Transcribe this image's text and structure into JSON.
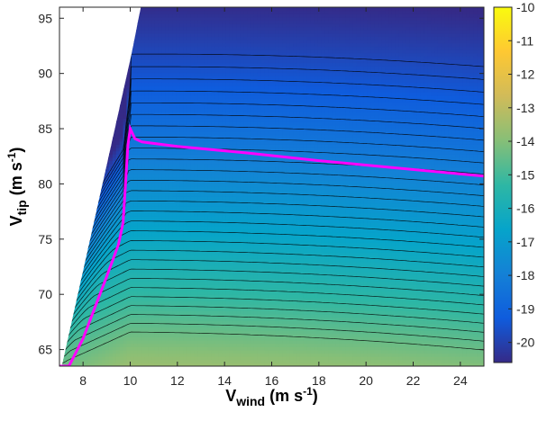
{
  "chart_data": {
    "type": "contour",
    "xlabel": {
      "main": "V",
      "sub": "wind",
      "rest": " (m s",
      "sup": "-1",
      "close": ")"
    },
    "ylabel": {
      "main": "V",
      "sub": "tip",
      "rest": " (m s",
      "sup": "-1",
      "close": ")"
    },
    "xlim": [
      7,
      25
    ],
    "ylim": [
      63.5,
      96
    ],
    "xticks": [
      8,
      10,
      12,
      14,
      16,
      18,
      20,
      22,
      24
    ],
    "yticks": [
      65,
      70,
      75,
      80,
      85,
      90,
      95
    ],
    "colorbar": {
      "lim": [
        -20.6,
        -10
      ],
      "ticks": [
        -20,
        -19,
        -18,
        -17,
        -16,
        -15,
        -14,
        -13,
        -12,
        -11,
        -10
      ],
      "colormap": "parula"
    },
    "contour_levels": [
      -19.8,
      -19.6,
      -19.4,
      -19.2,
      -19.0,
      -18.8,
      -18.6,
      -18.4,
      -18.2,
      -18.0,
      -17.8,
      -17.6,
      -17.4,
      -17.2,
      -17.0,
      -16.8,
      -16.6,
      -16.4,
      -16.2,
      -16.0,
      -15.8,
      -15.6,
      -15.4,
      -15.2,
      -15.0,
      -14.8,
      -14.6,
      -14.4
    ],
    "optimal_curve": {
      "color": "#ff00ff",
      "x": [
        7.0,
        7.4,
        8.0,
        8.5,
        9.0,
        9.5,
        9.7,
        9.8,
        9.9,
        10.0,
        10.2,
        10.5,
        12,
        15,
        18,
        21,
        25
      ],
      "y": [
        63.5,
        63.5,
        66.0,
        68.8,
        71.6,
        74.5,
        76.5,
        80.0,
        83.5,
        85.0,
        84.1,
        83.8,
        83.4,
        82.8,
        82.1,
        81.5,
        80.7
      ]
    }
  }
}
